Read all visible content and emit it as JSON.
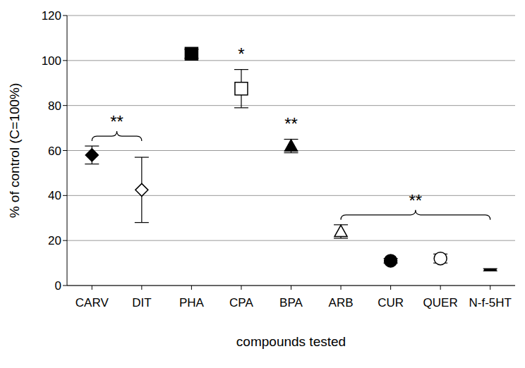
{
  "chart_data": {
    "type": "scatter",
    "xlabel": "compounds tested",
    "ylabel": "% of control (C=100%)",
    "categories": [
      "CARV",
      "DIT",
      "PHA",
      "CPA",
      "BPA",
      "ARB",
      "CUR",
      "QUER",
      "N-f-5HT"
    ],
    "ylim": [
      0,
      120
    ],
    "yticks": [
      0,
      20,
      40,
      60,
      80,
      100,
      120
    ],
    "grid": true,
    "series": [
      {
        "marker": "diamond",
        "color": "#000000",
        "values": [
          58,
          null,
          null,
          null,
          null,
          null,
          null,
          null,
          null
        ],
        "errors": [
          4,
          null,
          null,
          null,
          null,
          null,
          null,
          null,
          null
        ]
      },
      {
        "marker": "diamond-open",
        "color": "#000000",
        "values": [
          null,
          42.5,
          null,
          null,
          null,
          null,
          null,
          null,
          null
        ],
        "errors": [
          null,
          14.5,
          null,
          null,
          null,
          null,
          null,
          null,
          null
        ]
      },
      {
        "marker": "square",
        "color": "#000000",
        "values": [
          null,
          null,
          103,
          null,
          null,
          null,
          null,
          null,
          null
        ],
        "errors": [
          null,
          null,
          2,
          null,
          null,
          null,
          null,
          null,
          null
        ]
      },
      {
        "marker": "square-open",
        "color": "#000000",
        "values": [
          null,
          null,
          null,
          87.5,
          null,
          null,
          null,
          null,
          null
        ],
        "errors": [
          null,
          null,
          null,
          8.5,
          null,
          null,
          null,
          null,
          null
        ]
      },
      {
        "marker": "triangle",
        "color": "#000000",
        "values": [
          null,
          null,
          null,
          null,
          62,
          null,
          null,
          null,
          null
        ],
        "errors": [
          null,
          null,
          null,
          null,
          3,
          null,
          null,
          null,
          null
        ]
      },
      {
        "marker": "triangle-open",
        "color": "#000000",
        "values": [
          null,
          null,
          null,
          null,
          null,
          24,
          null,
          null,
          null
        ],
        "errors": [
          null,
          null,
          null,
          null,
          null,
          3,
          null,
          null,
          null
        ]
      },
      {
        "marker": "circle",
        "color": "#000000",
        "values": [
          null,
          null,
          null,
          null,
          null,
          null,
          11,
          null,
          null
        ],
        "errors": [
          null,
          null,
          null,
          null,
          null,
          null,
          1,
          null,
          null
        ]
      },
      {
        "marker": "circle-open",
        "color": "#000000",
        "values": [
          null,
          null,
          null,
          null,
          null,
          null,
          null,
          12,
          null
        ],
        "errors": [
          null,
          null,
          null,
          null,
          null,
          null,
          null,
          2,
          null
        ]
      },
      {
        "marker": "dash",
        "color": "#000000",
        "values": [
          null,
          null,
          null,
          null,
          null,
          null,
          null,
          null,
          7
        ],
        "errors": [
          null,
          null,
          null,
          null,
          null,
          null,
          null,
          null,
          0.5
        ]
      }
    ],
    "annotations": [
      {
        "text": "**",
        "from": "CARV",
        "to": "DIT"
      },
      {
        "text": "*",
        "from": "CPA",
        "to": "CPA"
      },
      {
        "text": "**",
        "from": "BPA",
        "to": "BPA"
      },
      {
        "text": "**",
        "from": "ARB",
        "to": "N-f-5HT"
      }
    ]
  }
}
